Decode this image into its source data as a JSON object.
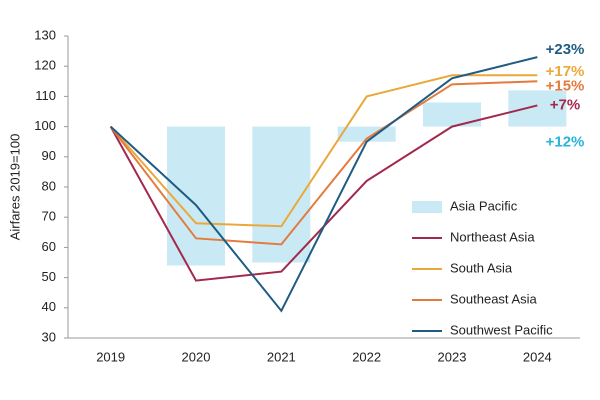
{
  "chart_data": {
    "type": "bar+line",
    "y_label": "Airfares 2019=100",
    "categories": [
      "2019",
      "2020",
      "2021",
      "2022",
      "2023",
      "2024"
    ],
    "ylim": [
      30,
      130
    ],
    "yticks": [
      30,
      40,
      50,
      60,
      70,
      80,
      90,
      100,
      110,
      120,
      130
    ],
    "bar_baseline": 100,
    "series": [
      {
        "name": "Asia Pacific",
        "type": "bar",
        "color": "#c9eaf5",
        "annotation": "+12%",
        "annotation_color": "#27b4d8",
        "values": [
          100,
          54,
          55,
          95,
          108,
          112
        ]
      },
      {
        "name": "Northeast Asia",
        "type": "line",
        "color": "#a3284b",
        "annotation": "+7%",
        "values": [
          100,
          49,
          52,
          82,
          100,
          107
        ]
      },
      {
        "name": "South Asia",
        "type": "line",
        "color": "#e9a93a",
        "annotation": "+17%",
        "values": [
          100,
          68,
          67,
          110,
          117,
          117
        ]
      },
      {
        "name": "Southeast Asia",
        "type": "line",
        "color": "#e47b3e",
        "annotation": "+15%",
        "values": [
          100,
          63,
          61,
          96,
          114,
          115
        ]
      },
      {
        "name": "Southwest Pacific",
        "type": "line",
        "color": "#1f5c84",
        "annotation": "+23%",
        "values": [
          100,
          74,
          39,
          95,
          116,
          123
        ]
      }
    ]
  }
}
